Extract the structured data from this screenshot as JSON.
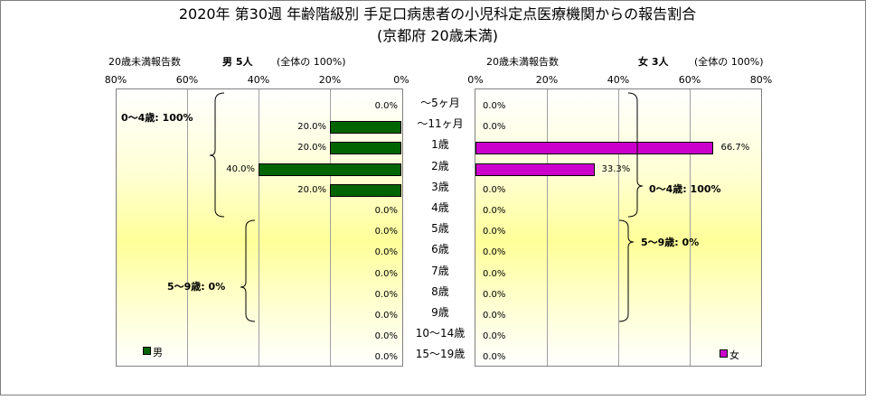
{
  "title_line1": "2020年 第30週 年齢階級別 手足口病患者の小児科定点医療機関からの報告割合",
  "title_line2": "(京都府 20歳未満)",
  "male": {
    "header_label": "20歳未満報告数",
    "header_count": "男 5人",
    "header_note": "(全体の 100%)",
    "ticks": [
      "80%",
      "60%",
      "40%",
      "20%",
      "0%"
    ],
    "legend": "男",
    "color": "#006400",
    "notes": [
      "0～4歳: 100%",
      "5～9歳: 0%"
    ]
  },
  "female": {
    "header_label": "20歳未満報告数",
    "header_count": "女 3人",
    "header_note": "(全体の 100%)",
    "ticks": [
      "0%",
      "20%",
      "40%",
      "60%",
      "80%"
    ],
    "legend": "女",
    "color": "#cc00cc",
    "notes": [
      "0～4歳: 100%",
      "5～9歳: 0%"
    ]
  },
  "chart_data": {
    "type": "bar",
    "orientation": "horizontal-population-pyramid",
    "categories": [
      "～5ヶ月",
      "～11ヶ月",
      "1歳",
      "2歳",
      "3歳",
      "4歳",
      "5歳",
      "6歳",
      "7歳",
      "8歳",
      "9歳",
      "10～14歳",
      "15～19歳"
    ],
    "xlim": [
      0,
      80
    ],
    "grid": true,
    "series": [
      {
        "name": "男",
        "values": [
          0.0,
          20.0,
          20.0,
          40.0,
          20.0,
          0.0,
          0.0,
          0.0,
          0.0,
          0.0,
          0.0,
          0.0,
          0.0
        ],
        "labels": [
          "0.0%",
          "20.0%",
          "20.0%",
          "40.0%",
          "20.0%",
          "0.0%",
          "0.0%",
          "0.0%",
          "0.0%",
          "0.0%",
          "0.0%",
          "0.0%",
          "0.0%"
        ]
      },
      {
        "name": "女",
        "values": [
          0.0,
          0.0,
          66.7,
          33.3,
          0.0,
          0.0,
          0.0,
          0.0,
          0.0,
          0.0,
          0.0,
          0.0,
          0.0
        ],
        "labels": [
          "0.0%",
          "0.0%",
          "66.7%",
          "33.3%",
          "0.0%",
          "0.0%",
          "0.0%",
          "0.0%",
          "0.0%",
          "0.0%",
          "0.0%",
          "0.0%",
          "0.0%"
        ]
      }
    ]
  }
}
